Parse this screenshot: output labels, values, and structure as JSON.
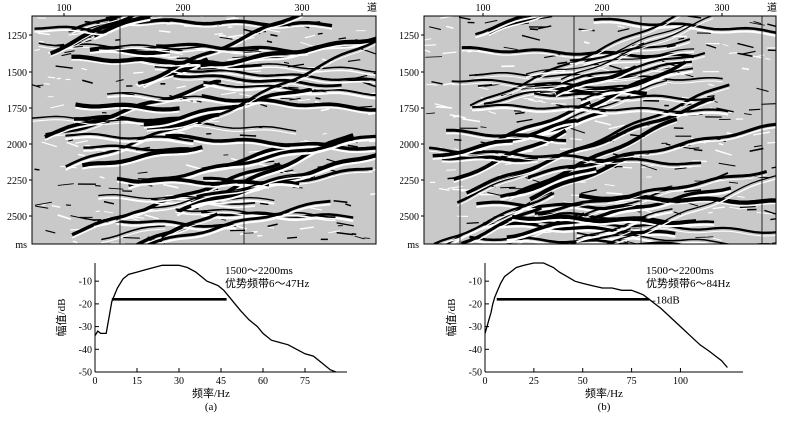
{
  "panels": [
    {
      "id": "a",
      "caption": "(a)",
      "seismic": {
        "trace_ticks": [
          "100",
          "200",
          "300"
        ],
        "trace_unit": "道",
        "time_ticks": [
          "1250",
          "1500",
          "1750",
          "2000",
          "2250",
          "2500"
        ],
        "time_unit": "ms"
      },
      "annotation_line1": "1500～2200ms",
      "annotation_line2": "优势频带6～47Hz",
      "marker_label": "",
      "spectrum": {
        "ylabel": "幅值/dB",
        "xlabel": "频率/Hz",
        "x_ticks": [
          "0",
          "15",
          "30",
          "45",
          "60",
          "75"
        ],
        "y_ticks": [
          "-10",
          "-20",
          "-30",
          "-40",
          "-50"
        ]
      }
    },
    {
      "id": "b",
      "caption": "(b)",
      "seismic": {
        "trace_ticks": [
          "100",
          "200",
          "300"
        ],
        "trace_unit": "道",
        "time_ticks": [
          "1250",
          "1500",
          "1750",
          "2000",
          "2250",
          "2500"
        ],
        "time_unit": "ms"
      },
      "annotation_line1": "1500～2200ms",
      "annotation_line2": "优势频带6～84Hz",
      "marker_label": "-18dB",
      "spectrum": {
        "ylabel": "幅值/dB",
        "xlabel": "频率/Hz",
        "x_ticks": [
          "0",
          "25",
          "50",
          "75",
          "100"
        ],
        "y_ticks": [
          "-10",
          "-20",
          "-30",
          "-40",
          "-50"
        ]
      }
    }
  ],
  "chart_data": [
    {
      "type": "line",
      "xlabel": "频率/Hz",
      "ylabel": "幅值/dB",
      "xlim": [
        0,
        90
      ],
      "ylim": [
        -50,
        -2
      ],
      "band_line": {
        "x": [
          6,
          47
        ],
        "y": -18
      },
      "x": [
        0,
        1,
        2,
        3,
        4,
        5,
        6,
        8,
        10,
        12,
        15,
        18,
        21,
        24,
        27,
        30,
        33,
        36,
        38,
        40,
        42,
        44,
        46,
        48,
        50,
        52,
        55,
        58,
        60,
        63,
        66,
        69,
        72,
        75,
        78,
        81,
        84,
        86
      ],
      "y": [
        -34,
        -32,
        -33,
        -33,
        -33,
        -26,
        -19,
        -13,
        -9,
        -7,
        -6,
        -5,
        -4,
        -3,
        -3,
        -3,
        -4,
        -6,
        -8,
        -10,
        -11,
        -12,
        -14,
        -17,
        -20,
        -23,
        -27,
        -30,
        -33,
        -36,
        -37,
        -38,
        -40,
        -42,
        -43,
        -46,
        -49,
        -50
      ]
    },
    {
      "type": "line",
      "xlabel": "频率/Hz",
      "ylabel": "幅值/dB",
      "xlim": [
        0,
        132
      ],
      "ylim": [
        -50,
        -2
      ],
      "band_line": {
        "x": [
          6,
          84
        ],
        "y": -18
      },
      "x": [
        0,
        1,
        2,
        3,
        4,
        5,
        6,
        8,
        10,
        13,
        16,
        20,
        25,
        30,
        35,
        38,
        42,
        46,
        50,
        55,
        60,
        65,
        70,
        75,
        78,
        81,
        84,
        87,
        90,
        95,
        100,
        105,
        110,
        115,
        118,
        121,
        124
      ],
      "y": [
        -33,
        -30,
        -27,
        -24,
        -20,
        -17,
        -15,
        -11,
        -8,
        -6,
        -4,
        -3,
        -2,
        -2,
        -4,
        -6,
        -8,
        -10,
        -11,
        -12,
        -13,
        -13,
        -14,
        -14,
        -15,
        -16,
        -18,
        -20,
        -22,
        -26,
        -30,
        -34,
        -38,
        -41,
        -43,
        -45,
        -48
      ]
    }
  ]
}
